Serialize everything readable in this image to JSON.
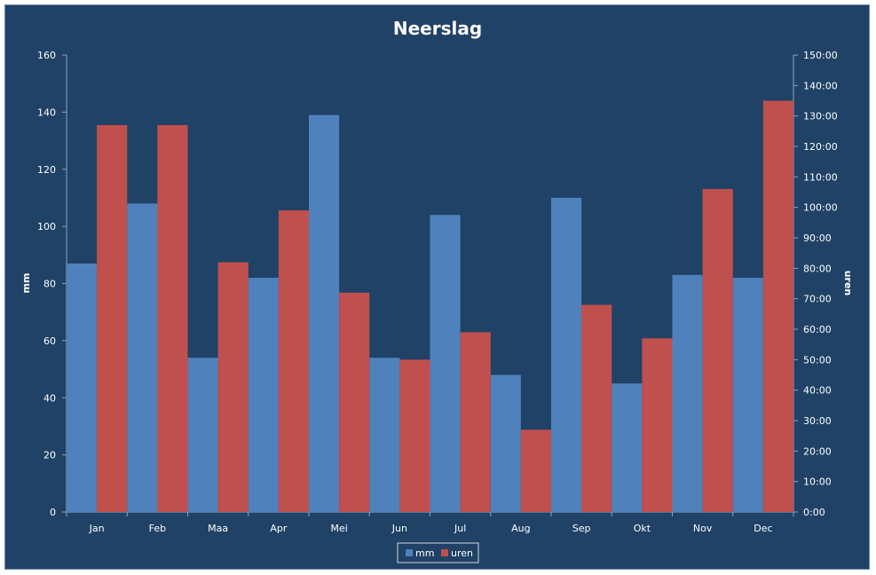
{
  "chart_data": {
    "type": "bar",
    "title": "Neerslag",
    "categories": [
      "Jan",
      "Feb",
      "Maa",
      "Apr",
      "Mei",
      "Jun",
      "Jul",
      "Aug",
      "Sep",
      "Okt",
      "Nov",
      "Dec"
    ],
    "series": [
      {
        "name": "mm",
        "axis": "left",
        "color": "#4f81bd",
        "values": [
          87,
          108,
          54,
          82,
          139,
          54,
          104,
          48,
          110,
          45,
          83,
          82
        ]
      },
      {
        "name": "uren",
        "axis": "right",
        "color": "#c0504d",
        "values": [
          "127:00",
          "127:00",
          "82:00",
          "99:00",
          "72:00",
          "50:00",
          "59:00",
          "27:00",
          "68:00",
          "57:00",
          "106:00",
          "135:00"
        ]
      }
    ],
    "ylabel_left": "mm",
    "ylabel_right": "uren",
    "ylim_left": [
      0,
      160
    ],
    "yticks_left": [
      "0",
      "20",
      "40",
      "60",
      "80",
      "100",
      "120",
      "140",
      "160"
    ],
    "ylim_right": [
      "0:00",
      "150:00"
    ],
    "yticks_right": [
      "0:00",
      "10:00",
      "20:00",
      "30:00",
      "40:00",
      "50:00",
      "60:00",
      "70:00",
      "80:00",
      "90:00",
      "100:00",
      "110:00",
      "120:00",
      "130:00",
      "140:00",
      "150:00"
    ],
    "grid": false,
    "legend_position": "bottom",
    "background": "#1f4266"
  }
}
